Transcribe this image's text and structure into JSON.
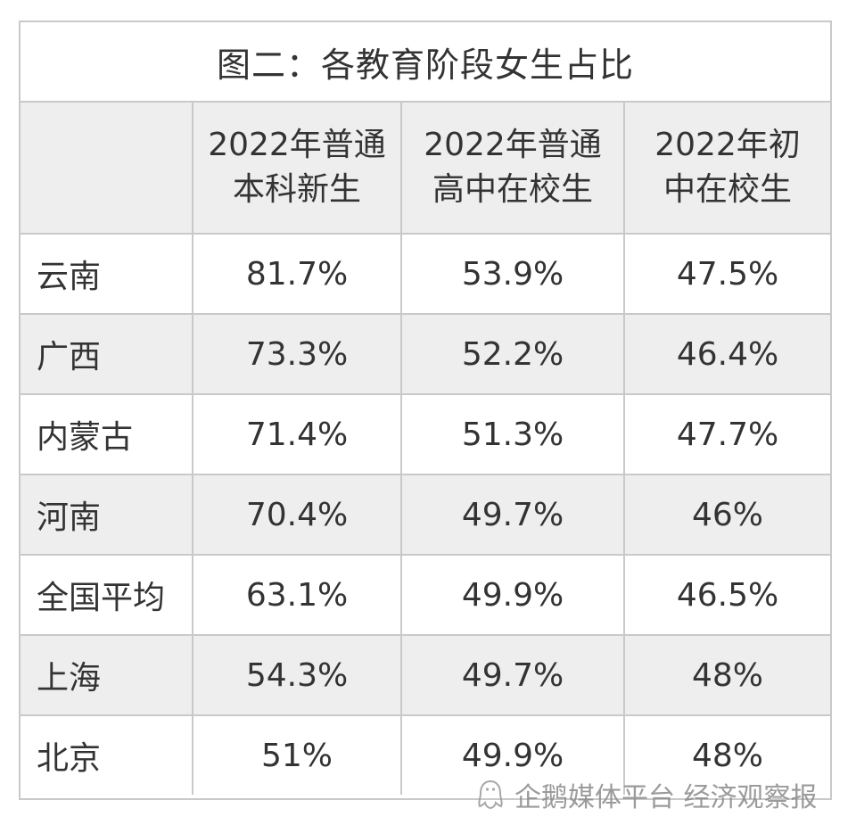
{
  "chart_data": {
    "type": "table",
    "title": "图二：各教育阶段女生占比",
    "columns": [
      "",
      "2022年普通本科新生",
      "2022年普通高中在校生",
      "2022年初中在校生"
    ],
    "rows": [
      {
        "region": "云南",
        "values": [
          "81.7%",
          "53.9%",
          "47.5%"
        ]
      },
      {
        "region": "广西",
        "values": [
          "73.3%",
          "52.2%",
          "46.4%"
        ]
      },
      {
        "region": "内蒙古",
        "values": [
          "71.4%",
          "51.3%",
          "47.7%"
        ]
      },
      {
        "region": "河南",
        "values": [
          "70.4%",
          "49.7%",
          "46%"
        ]
      },
      {
        "region": "全国平均",
        "values": [
          "63.1%",
          "49.9%",
          "46.5%"
        ]
      },
      {
        "region": "上海",
        "values": [
          "54.3%",
          "49.7%",
          "48%"
        ]
      },
      {
        "region": "北京",
        "values": [
          "51%",
          "49.9%",
          "48%"
        ]
      }
    ]
  },
  "watermark": {
    "text": "企鹅媒体平台 经济观察报",
    "icon": "penguin-logo-icon"
  },
  "colors": {
    "grid": "#c9c9c9",
    "shaded_row": "#eeeeee",
    "text": "#333333"
  }
}
